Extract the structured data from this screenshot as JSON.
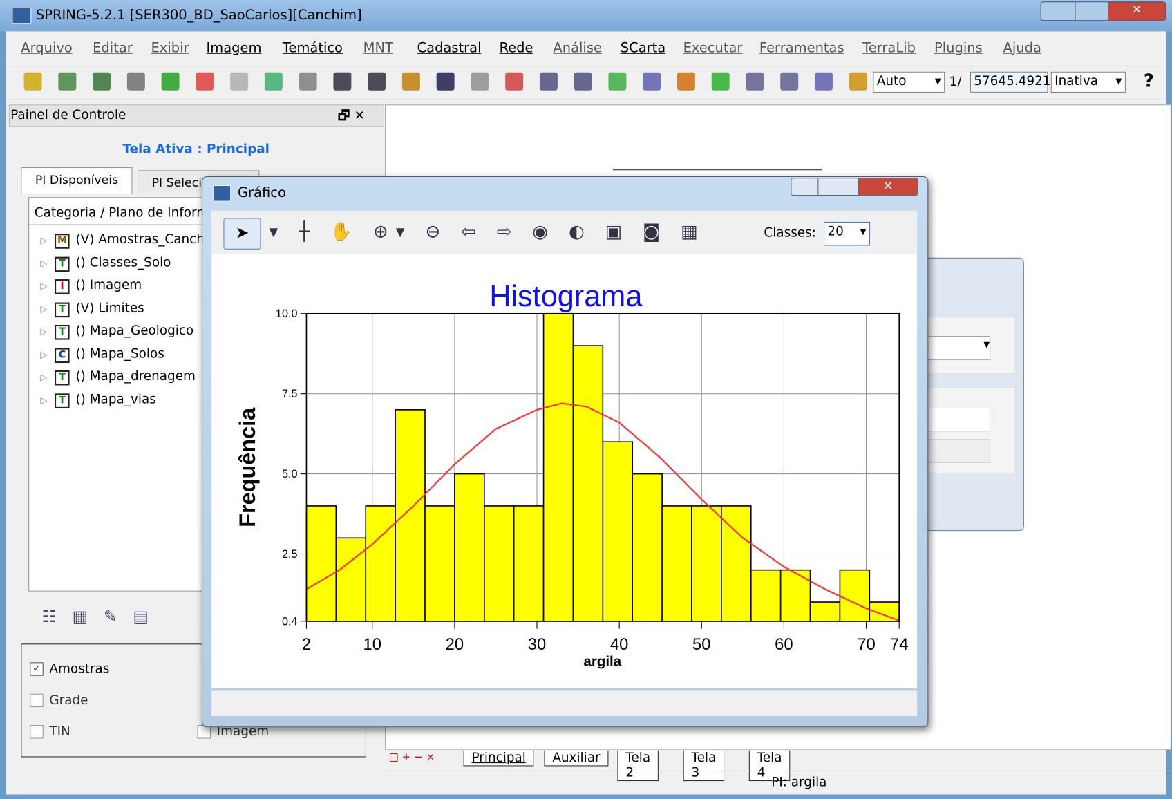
{
  "window": {
    "title": "SPRING-5.2.1 [SER300_BD_SaoCarlos][Canchim]"
  },
  "menu": [
    "Arquivo",
    "Editar",
    "Exibir",
    "Imagem",
    "Temático",
    "MNT",
    "Cadastral",
    "Rede",
    "Análise",
    "SCarta",
    "Executar",
    "Ferramentas",
    "TerraLib",
    "Plugins",
    "Ajuda"
  ],
  "toolbar": {
    "mode": "Auto",
    "scale_prefix": "1/",
    "scale": "57645.4921",
    "state": "Inativa"
  },
  "control_panel": {
    "title": "Painel de Controle",
    "active_screen": "Tela Ativa : Principal",
    "tabs": [
      "PI Disponíveis",
      "PI Selecionados"
    ],
    "column": "Categoria / Plano de Informação",
    "items": [
      {
        "icon": "M",
        "label": "(V) Amostras_Canchim"
      },
      {
        "icon": "T",
        "label": "() Classes_Solo"
      },
      {
        "icon": "I",
        "label": "() Imagem"
      },
      {
        "icon": "T",
        "label": "(V) Limites"
      },
      {
        "icon": "T",
        "label": "() Mapa_Geologico"
      },
      {
        "icon": "C",
        "label": "() Mapa_Solos"
      },
      {
        "icon": "T",
        "label": "() Mapa_drenagem"
      },
      {
        "icon": "T",
        "label": "() Mapa_vias"
      }
    ],
    "checks": [
      "Amostras",
      "Grade",
      "TIN",
      "Imagem"
    ]
  },
  "screen_tabs": [
    "Principal",
    "Auxiliar",
    "Tela 2",
    "Tela 3",
    "Tela 4"
  ],
  "status": "PI: argila",
  "dialog": {
    "title": "Gráfico",
    "classes_label": "Classes:",
    "classes": "20"
  },
  "chart_data": {
    "type": "histogram",
    "title": "Histograma",
    "x_label": "argila",
    "y_label": "Frequência",
    "bins": [
      2,
      5.6,
      9.2,
      12.8,
      16.4,
      20,
      23.6,
      27.2,
      30.8,
      34.4,
      38,
      41.6,
      45.2,
      48.8,
      52.4,
      56,
      59.6,
      63.2,
      66.8,
      70.4,
      74
    ],
    "values": [
      4,
      3,
      4,
      7,
      4,
      5,
      4,
      4,
      10,
      9,
      6,
      5,
      4,
      4,
      4,
      2,
      2,
      1,
      2,
      1
    ],
    "color": "#ffff00",
    "xlim": [
      2,
      74
    ],
    "ylim": [
      0.4,
      10
    ],
    "xticks": [
      2,
      10,
      20,
      30,
      40,
      50,
      60,
      70,
      74
    ],
    "yticks": [
      {
        "value": 10,
        "label": "10.0"
      },
      7.5,
      {
        "value": 5,
        "label": "5.0"
      },
      2.5,
      0.4
    ],
    "grid": true,
    "curve": {
      "color": "#ff3030",
      "x": [
        2,
        6,
        10,
        15,
        20,
        25,
        30,
        33,
        36,
        40,
        45,
        50,
        55,
        60,
        65,
        70,
        74
      ],
      "values": [
        1.4,
        2.0,
        2.8,
        4.0,
        5.3,
        6.4,
        7.0,
        7.2,
        7.1,
        6.6,
        5.5,
        4.2,
        3.0,
        2.1,
        1.4,
        0.8,
        0.42
      ]
    }
  }
}
